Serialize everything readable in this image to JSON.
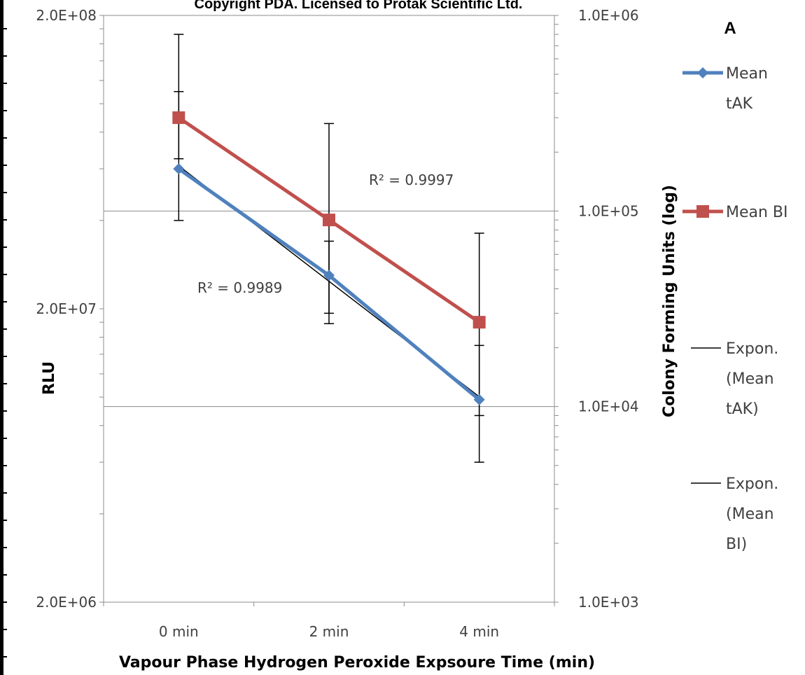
{
  "copyright": "Copyright PDA. Licensed to Protak Scientific Ltd.",
  "panel_label": "A",
  "chart_data": {
    "type": "line",
    "categories": [
      "0 min",
      "2 min",
      "4 min"
    ],
    "xlabel": "Vapour Phase Hydrogen Peroxide  Expsoure Time (min)",
    "left_axis": {
      "label": "RLU",
      "scale": "log",
      "range": [
        2000000,
        200000000
      ],
      "ticks": [
        200000000,
        20000000,
        2000000
      ],
      "tick_labels": [
        "2.0E+08",
        "2.0E+07",
        "2.0E+06"
      ]
    },
    "right_axis": {
      "label": "Colony Forming Units (log)",
      "scale": "log",
      "range": [
        1000,
        1000000
      ],
      "ticks": [
        1000000,
        100000,
        10000,
        1000
      ],
      "tick_labels": [
        "1.0E+06",
        "1.0E+05",
        "1.0E+04",
        "1.0E+03"
      ]
    },
    "grid": "horizontal",
    "legend_position": "right",
    "series": [
      {
        "name": "Mean tAK",
        "axis": "left",
        "color": "#4F81BD",
        "marker": "diamond",
        "values": [
          60000000,
          26000000,
          9800000
        ],
        "error_low": [
          40000000,
          17800000,
          6000000
        ],
        "error_high": [
          110000000,
          34000000,
          15000000
        ]
      },
      {
        "name": "Mean BI",
        "axis": "right",
        "color": "#C0504D",
        "marker": "square",
        "values": [
          300000,
          90000,
          27000
        ],
        "error_low": [
          185000,
          30000,
          9000
        ],
        "error_high": [
          800000,
          280000,
          77000
        ]
      }
    ],
    "trendlines": [
      {
        "name": "Expon. (Mean tAK)",
        "color": "#000000",
        "r2_label": "R² = 0.9989"
      },
      {
        "name": "Expon. (Mean BI)",
        "color": "#000000",
        "r2_label": "R² = 0.9997"
      }
    ],
    "legend": [
      {
        "label": "Mean tAK",
        "kind": "series",
        "series_index": 0
      },
      {
        "label": "Mean BI",
        "kind": "series",
        "series_index": 1
      },
      {
        "label": "Expon. (Mean tAK)",
        "kind": "trend"
      },
      {
        "label": "Expon. (Mean BI)",
        "kind": "trend"
      }
    ]
  }
}
